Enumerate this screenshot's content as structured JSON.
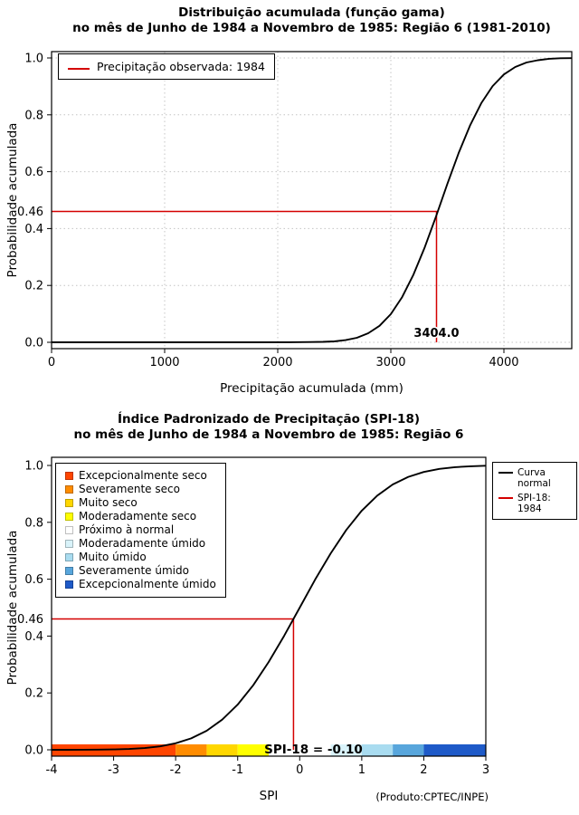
{
  "page": {
    "credit": "(Produto:CPTEC/INPE)"
  },
  "chart_data": [
    {
      "type": "line",
      "title_line1": "Distribuição acumulada (função gama)",
      "title_line2": "no mês de Junho de 1984 a Novembro de 1985: Região 6 (1981-2010)",
      "xlabel": "Precipitação acumulada (mm)",
      "ylabel": "Probabilidade acumulada",
      "xlim": [
        0,
        4600
      ],
      "ylim": [
        0,
        1
      ],
      "grid": true,
      "xticks": [
        0,
        1000,
        2000,
        3000,
        4000
      ],
      "xtick_labels": [
        "0",
        "1000",
        "2000",
        "3000",
        "4000"
      ],
      "yticks": [
        0.0,
        0.2,
        0.4,
        0.6,
        0.8,
        1.0
      ],
      "ytick_labels": [
        "0.0",
        "0.2",
        "0.4",
        "0.6",
        "0.8",
        "1.0"
      ],
      "series": [
        {
          "name": "Distribuição gama acumulada",
          "color": "#000000",
          "x": [
            0,
            300,
            600,
            900,
            1200,
            1500,
            1800,
            2000,
            2100,
            2200,
            2300,
            2400,
            2500,
            2600,
            2700,
            2800,
            2900,
            3000,
            3100,
            3200,
            3300,
            3400,
            3500,
            3600,
            3700,
            3800,
            3900,
            4000,
            4100,
            4200,
            4300,
            4400,
            4500,
            4600
          ],
          "y": [
            0,
            0,
            0,
            0,
            0,
            0,
            0.0001,
            0.0002,
            0.0004,
            0.0007,
            0.001,
            0.0016,
            0.0033,
            0.0076,
            0.016,
            0.032,
            0.058,
            0.099,
            0.159,
            0.238,
            0.334,
            0.443,
            0.557,
            0.666,
            0.762,
            0.841,
            0.901,
            0.942,
            0.968,
            0.984,
            0.992,
            0.997,
            0.999,
            0.9995
          ]
        }
      ],
      "marker": {
        "x": 3404.0,
        "y": 0.46,
        "color": "#d40000",
        "y_label": "0.46",
        "x_label": "3404.0"
      },
      "legend": [
        {
          "label": "Precipitação observada: 1984",
          "color": "#d40000"
        }
      ]
    },
    {
      "type": "line",
      "title_line1": "Índice Padronizado de Precipitação (SPI-18)",
      "title_line2": "no mês de Junho de 1984 a Novembro de 1985: Região 6",
      "xlabel": "SPI",
      "ylabel": "Probabilidade acumulada",
      "xlim": [
        -4,
        3
      ],
      "ylim": [
        0,
        1
      ],
      "grid": false,
      "xticks": [
        -4,
        -3,
        -2,
        -1,
        0,
        1,
        2,
        3
      ],
      "xtick_labels": [
        "-4",
        "-3",
        "-2",
        "-1",
        "0",
        "1",
        "2",
        "3"
      ],
      "yticks": [
        0.0,
        0.2,
        0.4,
        0.6,
        0.8,
        1.0
      ],
      "ytick_labels": [
        "0.0",
        "0.2",
        "0.4",
        "0.6",
        "0.8",
        "1.0"
      ],
      "series": [
        {
          "name": "Curva normal",
          "color": "#000000",
          "x": [
            -4,
            -3.75,
            -3.5,
            -3.25,
            -3,
            -2.75,
            -2.5,
            -2.25,
            -2,
            -1.75,
            -1.5,
            -1.25,
            -1,
            -0.75,
            -0.5,
            -0.25,
            0,
            0.25,
            0.5,
            0.75,
            1,
            1.25,
            1.5,
            1.75,
            2,
            2.25,
            2.5,
            2.75,
            3
          ],
          "y": [
            0.0,
            0.0001,
            0.0002,
            0.0006,
            0.0013,
            0.003,
            0.006,
            0.012,
            0.023,
            0.04,
            0.067,
            0.106,
            0.159,
            0.227,
            0.309,
            0.401,
            0.5,
            0.599,
            0.691,
            0.773,
            0.841,
            0.894,
            0.933,
            0.96,
            0.977,
            0.988,
            0.994,
            0.997,
            0.999
          ]
        }
      ],
      "marker": {
        "x": -0.1,
        "y": 0.46,
        "color": "#d40000",
        "y_label": "0.46",
        "bar_label": "SPI-18 = -0.10"
      },
      "legend": [
        {
          "label": "Curva normal",
          "color": "#000000"
        },
        {
          "label": "SPI-18: 1984",
          "color": "#d40000"
        }
      ],
      "colorbar": [
        {
          "from": -4,
          "to": -2,
          "color": "#ff4500",
          "label": "Excepcionalmente seco"
        },
        {
          "from": -2,
          "to": -1.5,
          "color": "#ff8c00",
          "label": "Severamente seco"
        },
        {
          "from": -1.5,
          "to": -1,
          "color": "#ffd700",
          "label": "Muito seco"
        },
        {
          "from": -1,
          "to": -0.5,
          "color": "#ffff00",
          "label": "Moderadamente seco"
        },
        {
          "from": -0.5,
          "to": 0.5,
          "color": "#ffffff",
          "label": "Próximo à normal"
        },
        {
          "from": 0.5,
          "to": 1,
          "color": "#d9f3fa",
          "label": "Moderadamente úmido"
        },
        {
          "from": 1,
          "to": 1.5,
          "color": "#a9dcf0",
          "label": "Muito úmido"
        },
        {
          "from": 1.5,
          "to": 2,
          "color": "#58a6dc",
          "label": "Severamente úmido"
        },
        {
          "from": 2,
          "to": 3,
          "color": "#1e5ac8",
          "label": "Excepcionalmente úmido"
        }
      ]
    }
  ]
}
